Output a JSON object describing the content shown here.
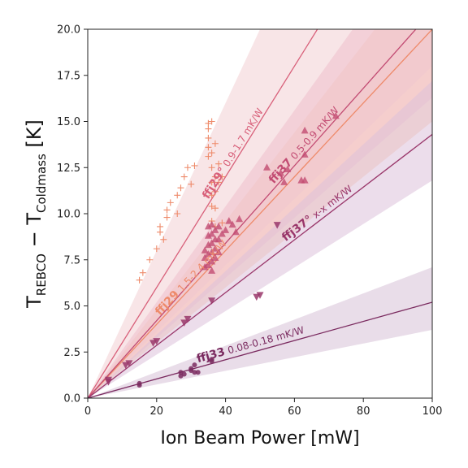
{
  "chart_data": {
    "type": "scatter",
    "xlabel": "Ion Beam Power [mW]",
    "ylabel": {
      "main": "T",
      "sub1": "REBCO",
      "minus": " − T",
      "sub2": "Coldmass",
      "unit": " [K]"
    },
    "xlim": [
      0,
      100
    ],
    "ylim": [
      0,
      20
    ],
    "x_ticks": [
      "0",
      "20",
      "40",
      "60",
      "80",
      "100"
    ],
    "y_ticks": [
      "0.0",
      "2.5",
      "5.0",
      "7.5",
      "10.0",
      "12.5",
      "15.0",
      "17.5",
      "20.0"
    ],
    "grid": false,
    "series": [
      {
        "name": "ffj29",
        "range_label": "1.5-2.4 mK/W",
        "marker": "plus",
        "color": "#ee8a6a",
        "band_color": "#f9c7a8",
        "slope": 0.2,
        "slope_low": 0.15,
        "slope_high": 0.24,
        "points": [
          [
            15,
            6.4
          ],
          [
            16,
            6.8
          ],
          [
            18,
            7.5
          ],
          [
            20,
            8.1
          ],
          [
            21,
            9.0
          ],
          [
            21,
            9.3
          ],
          [
            22,
            8.6
          ],
          [
            23,
            9.8
          ],
          [
            23,
            10.2
          ],
          [
            24,
            10.6
          ],
          [
            26,
            10.0
          ],
          [
            26,
            11.0
          ],
          [
            27,
            11.4
          ],
          [
            28,
            12.0
          ],
          [
            29,
            12.5
          ],
          [
            30,
            11.6
          ],
          [
            31,
            12.6
          ],
          [
            35,
            13.1
          ],
          [
            35,
            13.6
          ],
          [
            35,
            14.1
          ],
          [
            35,
            14.6
          ],
          [
            35,
            14.9
          ],
          [
            36,
            15.0
          ],
          [
            36,
            13.3
          ],
          [
            36,
            12.5
          ],
          [
            36,
            11.7
          ],
          [
            36,
            11.0
          ],
          [
            36,
            10.4
          ],
          [
            36,
            9.6
          ],
          [
            37,
            12.0
          ],
          [
            37,
            11.2
          ],
          [
            37,
            10.3
          ],
          [
            37,
            9.3
          ],
          [
            37,
            13.8
          ],
          [
            38,
            12.7
          ],
          [
            38,
            11.7
          ],
          [
            39,
            12.0
          ],
          [
            39,
            9.5
          ]
        ]
      },
      {
        "name": "ffj29°",
        "range_label": "0.9-1.7 mK/W",
        "marker": "none",
        "color": "#d8607a",
        "band_color": "#f3cfd3",
        "slope": 0.3,
        "slope_low": 0.18,
        "slope_high": 0.4,
        "points": []
      },
      {
        "name": "ffj37",
        "range_label": "0.5-0.9 mK/W",
        "marker": "triangle-up",
        "color": "#c24b72",
        "band_color": "#eec0cc",
        "slope": 0.21,
        "slope_low": 0.163,
        "slope_high": 0.26,
        "points": [
          [
            34,
            7.1
          ],
          [
            34,
            7.6
          ],
          [
            34,
            8.0
          ],
          [
            35,
            7.2
          ],
          [
            35,
            7.8
          ],
          [
            35,
            8.3
          ],
          [
            35,
            8.8
          ],
          [
            35,
            9.3
          ],
          [
            36,
            7.4
          ],
          [
            36,
            7.9
          ],
          [
            36,
            8.4
          ],
          [
            36,
            8.9
          ],
          [
            36,
            9.4
          ],
          [
            36,
            6.9
          ],
          [
            37,
            7.6
          ],
          [
            37,
            8.1
          ],
          [
            37,
            8.6
          ],
          [
            37,
            9.1
          ],
          [
            38,
            7.9
          ],
          [
            38,
            8.6
          ],
          [
            38,
            9.3
          ],
          [
            39,
            8.9
          ],
          [
            40,
            9.1
          ],
          [
            41,
            9.6
          ],
          [
            42,
            9.4
          ],
          [
            43,
            9.0
          ],
          [
            44,
            9.7
          ],
          [
            52,
            12.5
          ],
          [
            56,
            12.2
          ],
          [
            57,
            11.7
          ],
          [
            58,
            12.4
          ],
          [
            62,
            11.8
          ],
          [
            63,
            11.8
          ],
          [
            63,
            13.2
          ],
          [
            63,
            14.5
          ],
          [
            72,
            15.3
          ]
        ]
      },
      {
        "name": "ffj37°",
        "range_label": "x-x mK/W",
        "marker": "triangle-down",
        "color": "#99366a",
        "band_color": "#dcc1da",
        "slope": 0.143,
        "slope_low": 0.118,
        "slope_high": 0.172,
        "points": [
          [
            6,
            0.9
          ],
          [
            6,
            1.0
          ],
          [
            11,
            1.8
          ],
          [
            12,
            1.9
          ],
          [
            19,
            3.0
          ],
          [
            20,
            3.1
          ],
          [
            28,
            4.1
          ],
          [
            29,
            4.3
          ],
          [
            36,
            5.3
          ],
          [
            49,
            5.5
          ],
          [
            50,
            5.6
          ],
          [
            55,
            9.4
          ]
        ]
      },
      {
        "name": "ffj33",
        "range_label": "0.08-0.18 mK/W",
        "marker": "circle",
        "color": "#7a2a5f",
        "band_color": "#d7c1d7",
        "slope": 0.052,
        "slope_low": 0.037,
        "slope_high": 0.071,
        "points": [
          [
            15,
            0.7
          ],
          [
            15,
            0.8
          ],
          [
            27,
            1.2
          ],
          [
            27,
            1.4
          ],
          [
            28,
            1.3
          ],
          [
            30,
            1.5
          ],
          [
            30,
            1.6
          ],
          [
            31,
            1.8
          ],
          [
            31,
            1.4
          ],
          [
            32,
            1.4
          ],
          [
            36,
            2.0
          ],
          [
            36,
            2.1
          ]
        ]
      }
    ]
  }
}
